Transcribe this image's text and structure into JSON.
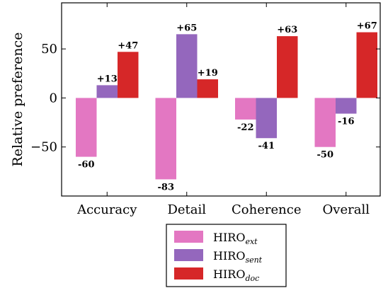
{
  "chart_data": {
    "type": "bar",
    "ylabel": "Relative preference",
    "xlabel": "",
    "title": "",
    "categories": [
      "Accuracy",
      "Detail",
      "Coherence",
      "Overall"
    ],
    "ylim": [
      -100,
      97
    ],
    "yticks": [
      -50,
      0,
      50
    ],
    "ytick_labels": [
      "−50",
      "0",
      "50"
    ],
    "grid": false,
    "legend_placement": "bottom-center",
    "series": [
      {
        "name": "HIRO",
        "subscript": "ext",
        "color": "#e377c2",
        "values": [
          -60,
          -83,
          -22,
          -50
        ],
        "labels": [
          "-60",
          "-83",
          "-22",
          "-50"
        ]
      },
      {
        "name": "HIRO",
        "subscript": "sent",
        "color": "#9467bd",
        "values": [
          13,
          65,
          -41,
          -16
        ],
        "labels": [
          "+13",
          "+65",
          "-41",
          "-16"
        ]
      },
      {
        "name": "HIRO",
        "subscript": "doc",
        "color": "#d62728",
        "values": [
          47,
          19,
          63,
          67
        ],
        "labels": [
          "+47",
          "+19",
          "+63",
          "+67"
        ]
      }
    ]
  }
}
